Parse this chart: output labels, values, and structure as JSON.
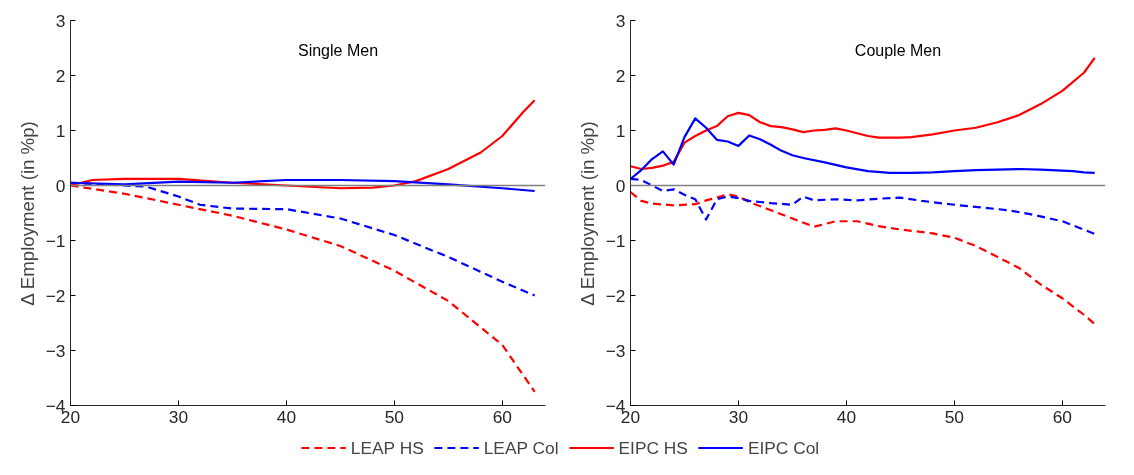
{
  "chart_data": [
    {
      "type": "line",
      "title": "Single Men",
      "ylabel": "Δ Employment (in %p)",
      "xlim": [
        20,
        64
      ],
      "ylim": [
        -4,
        3
      ],
      "xticks": [
        20,
        30,
        40,
        50,
        60
      ],
      "yticks": [
        -4,
        -3,
        -2,
        -1,
        0,
        1,
        2,
        3
      ],
      "grid": false,
      "legend": "bottom",
      "ref_lines": [
        {
          "axis": "y",
          "value": 0,
          "color": "#808080"
        }
      ],
      "series": [
        {
          "name": "LEAP HS",
          "color": "#ff0000",
          "line_style": "dashed",
          "x": [
            20,
            25,
            30,
            35,
            40,
            45,
            50,
            55,
            60,
            63
          ],
          "values": [
            0,
            -0.15,
            -0.35,
            -0.55,
            -0.8,
            -1.1,
            -1.55,
            -2.1,
            -2.9,
            -3.75
          ]
        },
        {
          "name": "LEAP Col",
          "color": "#0000ff",
          "line_style": "dashed",
          "x": [
            20,
            25,
            27,
            30,
            32,
            35,
            40,
            45,
            50,
            55,
            60,
            63
          ],
          "values": [
            0.05,
            0.0,
            -0.02,
            -0.2,
            -0.35,
            -0.42,
            -0.43,
            -0.6,
            -0.9,
            -1.3,
            -1.75,
            -2.0
          ]
        },
        {
          "name": "EIPC HS",
          "color": "#ff0000",
          "line_style": "solid",
          "x": [
            20,
            22,
            25,
            30,
            35,
            40,
            45,
            48,
            50,
            52,
            55,
            58,
            60,
            62,
            63
          ],
          "values": [
            0,
            0.1,
            0.12,
            0.12,
            0.05,
            0,
            -0.05,
            -0.04,
            0,
            0.08,
            0.3,
            0.6,
            0.9,
            1.35,
            1.55
          ]
        },
        {
          "name": "EIPC Col",
          "color": "#0000ff",
          "line_style": "solid",
          "x": [
            20,
            25,
            30,
            35,
            40,
            45,
            50,
            55,
            60,
            63
          ],
          "values": [
            0.05,
            0.02,
            0.07,
            0.05,
            0.1,
            0.1,
            0.08,
            0.02,
            -0.05,
            -0.1
          ]
        }
      ]
    },
    {
      "type": "line",
      "title": "Couple Men",
      "ylabel": "Δ Employment (in %p)",
      "xlim": [
        20,
        64
      ],
      "ylim": [
        -4,
        3
      ],
      "xticks": [
        20,
        30,
        40,
        50,
        60
      ],
      "yticks": [
        -4,
        -3,
        -2,
        -1,
        0,
        1,
        2,
        3
      ],
      "grid": false,
      "ref_lines": [
        {
          "axis": "y",
          "value": 0,
          "color": "#808080"
        }
      ],
      "series": [
        {
          "color": "#ff0000",
          "line_style": "dashed",
          "x": [
            20,
            21,
            22,
            24,
            26,
            27,
            28,
            29,
            30,
            31,
            33,
            35,
            37,
            39,
            41,
            43,
            45,
            48,
            50,
            52,
            54,
            56,
            58,
            60,
            62,
            63
          ],
          "values": [
            -0.12,
            -0.28,
            -0.33,
            -0.36,
            -0.34,
            -0.27,
            -0.22,
            -0.16,
            -0.2,
            -0.3,
            -0.45,
            -0.6,
            -0.75,
            -0.65,
            -0.65,
            -0.74,
            -0.8,
            -0.87,
            -0.95,
            -1.1,
            -1.3,
            -1.5,
            -1.8,
            -2.05,
            -2.35,
            -2.52
          ]
        },
        {
          "color": "#0000ff",
          "line_style": "dashed",
          "x": [
            20,
            21,
            22,
            23,
            24,
            25,
            26,
            27,
            28,
            29,
            30,
            31,
            32,
            33,
            35,
            36,
            37,
            39,
            41,
            43,
            45,
            47,
            50,
            55,
            57,
            60,
            63
          ],
          "values": [
            0.12,
            0.1,
            0.0,
            -0.1,
            -0.07,
            -0.17,
            -0.25,
            -0.62,
            -0.25,
            -0.2,
            -0.23,
            -0.28,
            -0.3,
            -0.32,
            -0.35,
            -0.2,
            -0.27,
            -0.25,
            -0.27,
            -0.24,
            -0.22,
            -0.28,
            -0.35,
            -0.45,
            -0.52,
            -0.65,
            -0.88
          ]
        },
        {
          "color": "#ff0000",
          "line_style": "solid",
          "x": [
            20,
            21,
            22,
            23,
            24,
            25,
            26,
            27,
            28,
            29,
            30,
            31,
            32,
            33,
            34,
            35,
            36,
            37,
            38,
            39,
            40,
            41,
            42,
            43,
            44,
            45,
            46,
            48,
            50,
            52,
            54,
            56,
            58,
            60,
            62,
            63
          ],
          "values": [
            0.35,
            0.3,
            0.32,
            0.36,
            0.43,
            0.78,
            0.9,
            1.0,
            1.08,
            1.26,
            1.32,
            1.28,
            1.15,
            1.08,
            1.06,
            1.02,
            0.97,
            1.0,
            1.01,
            1.04,
            1.0,
            0.95,
            0.9,
            0.87,
            0.87,
            0.87,
            0.88,
            0.93,
            1.0,
            1.05,
            1.15,
            1.28,
            1.48,
            1.72,
            2.05,
            2.32
          ]
        },
        {
          "color": "#0000ff",
          "line_style": "solid",
          "x": [
            20,
            21,
            22,
            23,
            24,
            25,
            26,
            27,
            28,
            29,
            30,
            31,
            32,
            33,
            34,
            35,
            36,
            38,
            40,
            42,
            44,
            46,
            48,
            50,
            52,
            54,
            56,
            58,
            60,
            61,
            62,
            63
          ],
          "values": [
            0.12,
            0.28,
            0.48,
            0.62,
            0.38,
            0.88,
            1.22,
            1.05,
            0.83,
            0.8,
            0.72,
            0.91,
            0.84,
            0.74,
            0.63,
            0.55,
            0.5,
            0.42,
            0.33,
            0.26,
            0.23,
            0.23,
            0.24,
            0.26,
            0.28,
            0.29,
            0.3,
            0.29,
            0.27,
            0.26,
            0.24,
            0.23
          ]
        }
      ]
    }
  ]
}
